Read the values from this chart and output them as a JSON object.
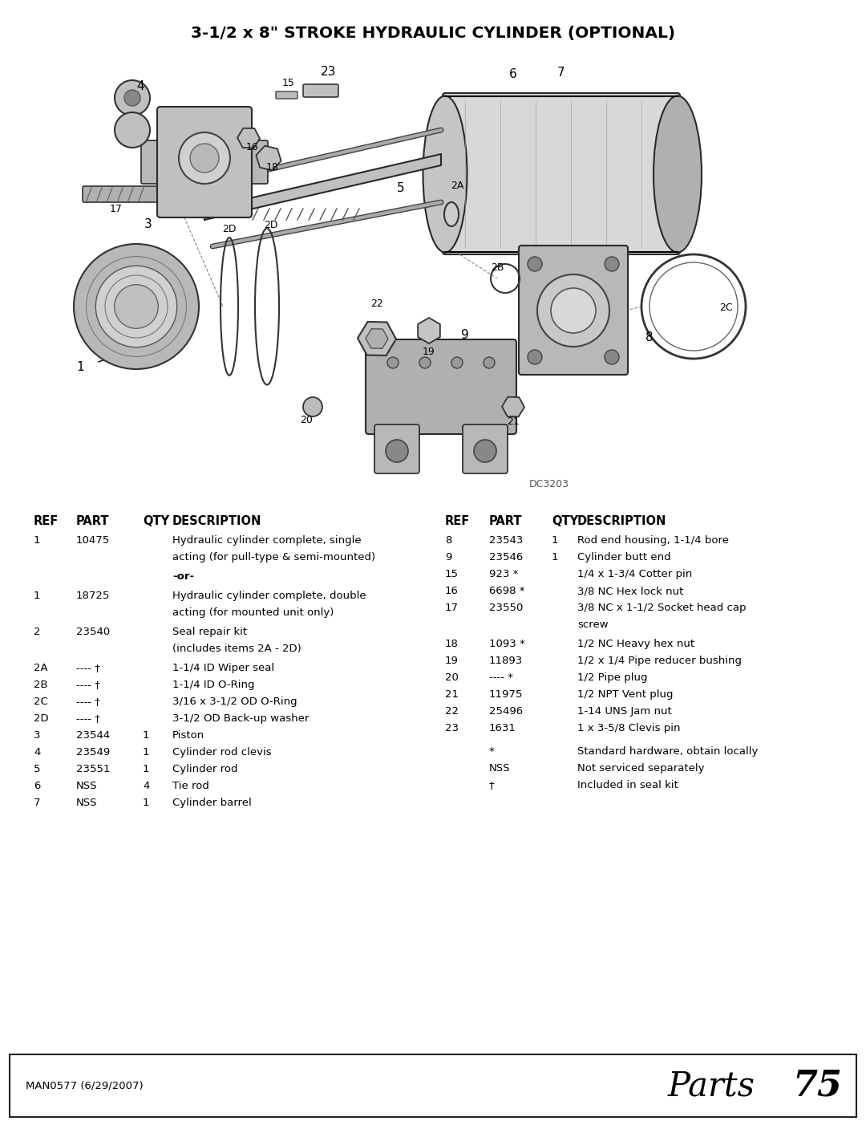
{
  "title": "3-1/2 x 8\" STROKE HYDRAULIC CYLINDER (OPTIONAL)",
  "diagram_label": "DC3203",
  "footer_left": "MAN0577 (6/29/2007)",
  "footer_right_text": "Parts ",
  "footer_right_num": "75",
  "table_header": [
    "REF",
    "PART",
    "QTY",
    "DESCRIPTION"
  ],
  "left_rows": [
    {
      "ref": "1",
      "part": "10475",
      "qty": "",
      "desc": "Hydraulic cylinder complete, single\nacting (for pull-type & semi-mounted)",
      "or": false
    },
    {
      "ref": "",
      "part": "",
      "qty": "",
      "desc": "-or-",
      "or": true
    },
    {
      "ref": "1",
      "part": "18725",
      "qty": "",
      "desc": "Hydraulic cylinder complete, double\nacting (for mounted unit only)",
      "or": false
    },
    {
      "ref": "2",
      "part": "23540",
      "qty": "",
      "desc": "Seal repair kit\n(includes items 2A - 2D)",
      "or": false
    },
    {
      "ref": "2A",
      "part": "---- †",
      "qty": "",
      "desc": "1-1/4 ID Wiper seal",
      "or": false
    },
    {
      "ref": "2B",
      "part": "---- †",
      "qty": "",
      "desc": "1-1/4 ID O-Ring",
      "or": false
    },
    {
      "ref": "2C",
      "part": "---- †",
      "qty": "",
      "desc": "3/16 x 3-1/2 OD O-Ring",
      "or": false
    },
    {
      "ref": "2D",
      "part": "---- †",
      "qty": "",
      "desc": "3-1/2 OD Back-up washer",
      "or": false
    },
    {
      "ref": "3",
      "part": "23544",
      "qty": "1",
      "desc": "Piston",
      "or": false
    },
    {
      "ref": "4",
      "part": "23549",
      "qty": "1",
      "desc": "Cylinder rod clevis",
      "or": false
    },
    {
      "ref": "5",
      "part": "23551",
      "qty": "1",
      "desc": "Cylinder rod",
      "or": false
    },
    {
      "ref": "6",
      "part": "NSS",
      "qty": "4",
      "desc": "Tie rod",
      "or": false
    },
    {
      "ref": "7",
      "part": "NSS",
      "qty": "1",
      "desc": "Cylinder barrel",
      "or": false
    }
  ],
  "right_rows": [
    {
      "ref": "8",
      "part": "23543",
      "qty": "1",
      "desc": "Rod end housing, 1-1/4 bore"
    },
    {
      "ref": "9",
      "part": "23546",
      "qty": "1",
      "desc": "Cylinder butt end"
    },
    {
      "ref": "15",
      "part": "923 *",
      "qty": "",
      "desc": "1/4 x 1-3/4 Cotter pin"
    },
    {
      "ref": "16",
      "part": "6698 *",
      "qty": "",
      "desc": "3/8 NC Hex lock nut"
    },
    {
      "ref": "17",
      "part": "23550",
      "qty": "",
      "desc": "3/8 NC x 1-1/2 Socket head cap\nscrew"
    },
    {
      "ref": "18",
      "part": "1093 *",
      "qty": "",
      "desc": "1/2 NC Heavy hex nut"
    },
    {
      "ref": "19",
      "part": "11893",
      "qty": "",
      "desc": "1/2 x 1/4 Pipe reducer bushing"
    },
    {
      "ref": "20",
      "part": "---- *",
      "qty": "",
      "desc": "1/2 Pipe plug"
    },
    {
      "ref": "21",
      "part": "11975",
      "qty": "",
      "desc": "1/2 NPT Vent plug"
    },
    {
      "ref": "22",
      "part": "25496",
      "qty": "",
      "desc": "1-14 UNS Jam nut"
    },
    {
      "ref": "23",
      "part": "1631",
      "qty": "",
      "desc": "1 x 3-5/8 Clevis pin"
    }
  ],
  "footnotes": [
    {
      "sym": "*",
      "text": "Standard hardware, obtain locally"
    },
    {
      "sym": "NSS",
      "text": "Not serviced separately"
    },
    {
      "sym": "†",
      "text": "Included in seal kit"
    }
  ],
  "bg_color": "#ffffff",
  "text_color": "#000000"
}
